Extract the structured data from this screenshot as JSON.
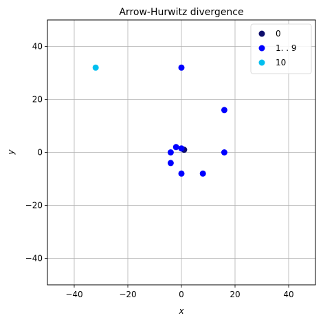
{
  "chart_data": {
    "type": "scatter",
    "title": "Arrow-Hurwitz divergence",
    "xlabel": "x",
    "ylabel": "y",
    "xlim": [
      -50,
      50
    ],
    "ylim": [
      -50,
      50
    ],
    "xticks": [
      -40,
      -20,
      0,
      20,
      40
    ],
    "yticks": [
      -40,
      -20,
      0,
      20,
      40
    ],
    "tick_labels_x": [
      "−40",
      "−20",
      "0",
      "20",
      "40"
    ],
    "tick_labels_y": [
      "−40",
      "−20",
      "0",
      "20",
      "40"
    ],
    "grid": true,
    "legend_position": "top-right",
    "series": [
      {
        "name": "0",
        "color": "#0d0d6b",
        "points": [
          [
            1,
            1
          ]
        ]
      },
      {
        "name": "1. . 9",
        "color": "#0000ff",
        "points": [
          [
            0,
            1.5
          ],
          [
            -2,
            2
          ],
          [
            -4,
            0
          ],
          [
            -4,
            -4
          ],
          [
            0,
            -8
          ],
          [
            8,
            -8
          ],
          [
            16,
            0
          ],
          [
            16,
            16
          ],
          [
            0,
            32
          ]
        ]
      },
      {
        "name": "10",
        "color": "#00bfef",
        "points": [
          [
            -32,
            32
          ]
        ]
      }
    ]
  }
}
